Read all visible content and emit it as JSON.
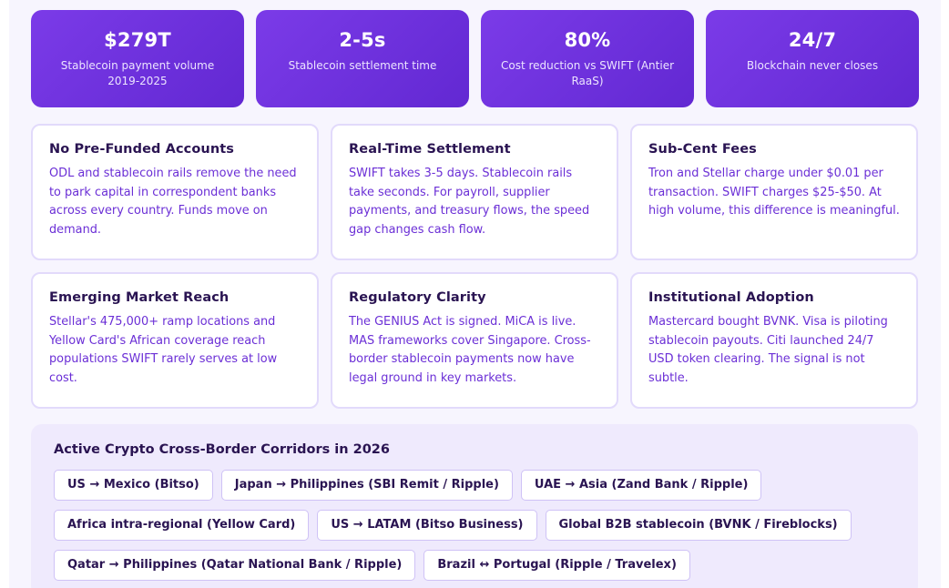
{
  "stats": [
    {
      "value": "$279T",
      "label": "Stablecoin payment volume 2019-2025"
    },
    {
      "value": "2-5s",
      "label": "Stablecoin settlement time"
    },
    {
      "value": "80%",
      "label": "Cost reduction vs SWIFT (Antier RaaS)"
    },
    {
      "value": "24/7",
      "label": "Blockchain never closes"
    }
  ],
  "cards": [
    {
      "title": "No Pre-Funded Accounts",
      "body": "ODL and stablecoin rails remove the need to park capital in correspondent banks across every country. Funds move on demand."
    },
    {
      "title": "Real-Time Settlement",
      "body": "SWIFT takes 3-5 days. Stablecoin rails take seconds. For payroll, supplier payments, and treasury flows, the speed gap changes cash flow."
    },
    {
      "title": "Sub-Cent Fees",
      "body": "Tron and Stellar charge under $0.01 per transaction. SWIFT charges $25-$50. At high volume, this difference is meaningful."
    },
    {
      "title": "Emerging Market Reach",
      "body": "Stellar's 475,000+ ramp locations and Yellow Card's African coverage reach populations SWIFT rarely serves at low cost."
    },
    {
      "title": "Regulatory Clarity",
      "body": "The GENIUS Act is signed. MiCA is live. MAS frameworks cover Singapore. Cross-border stablecoin payments now have legal ground in key markets."
    },
    {
      "title": "Institutional Adoption",
      "body": "Mastercard bought BVNK. Visa is piloting stablecoin payouts. Citi launched 24/7 USD token clearing. The signal is not subtle."
    }
  ],
  "corridors": {
    "title": "Active Crypto Cross-Border Corridors in 2026",
    "rows": [
      [
        "US → Mexico (Bitso)",
        "Japan → Philippines (SBI Remit / Ripple)",
        "UAE → Asia (Zand Bank / Ripple)"
      ],
      [
        "Africa intra-regional (Yellow Card)",
        "US → LATAM (Bitso Business)",
        "Global B2B stablecoin (BVNK / Fireblocks)"
      ],
      [
        "Qatar → Philippines (Qatar National Bank / Ripple)",
        "Brazil ↔ Portugal (Ripple / Travelex)"
      ]
    ]
  }
}
